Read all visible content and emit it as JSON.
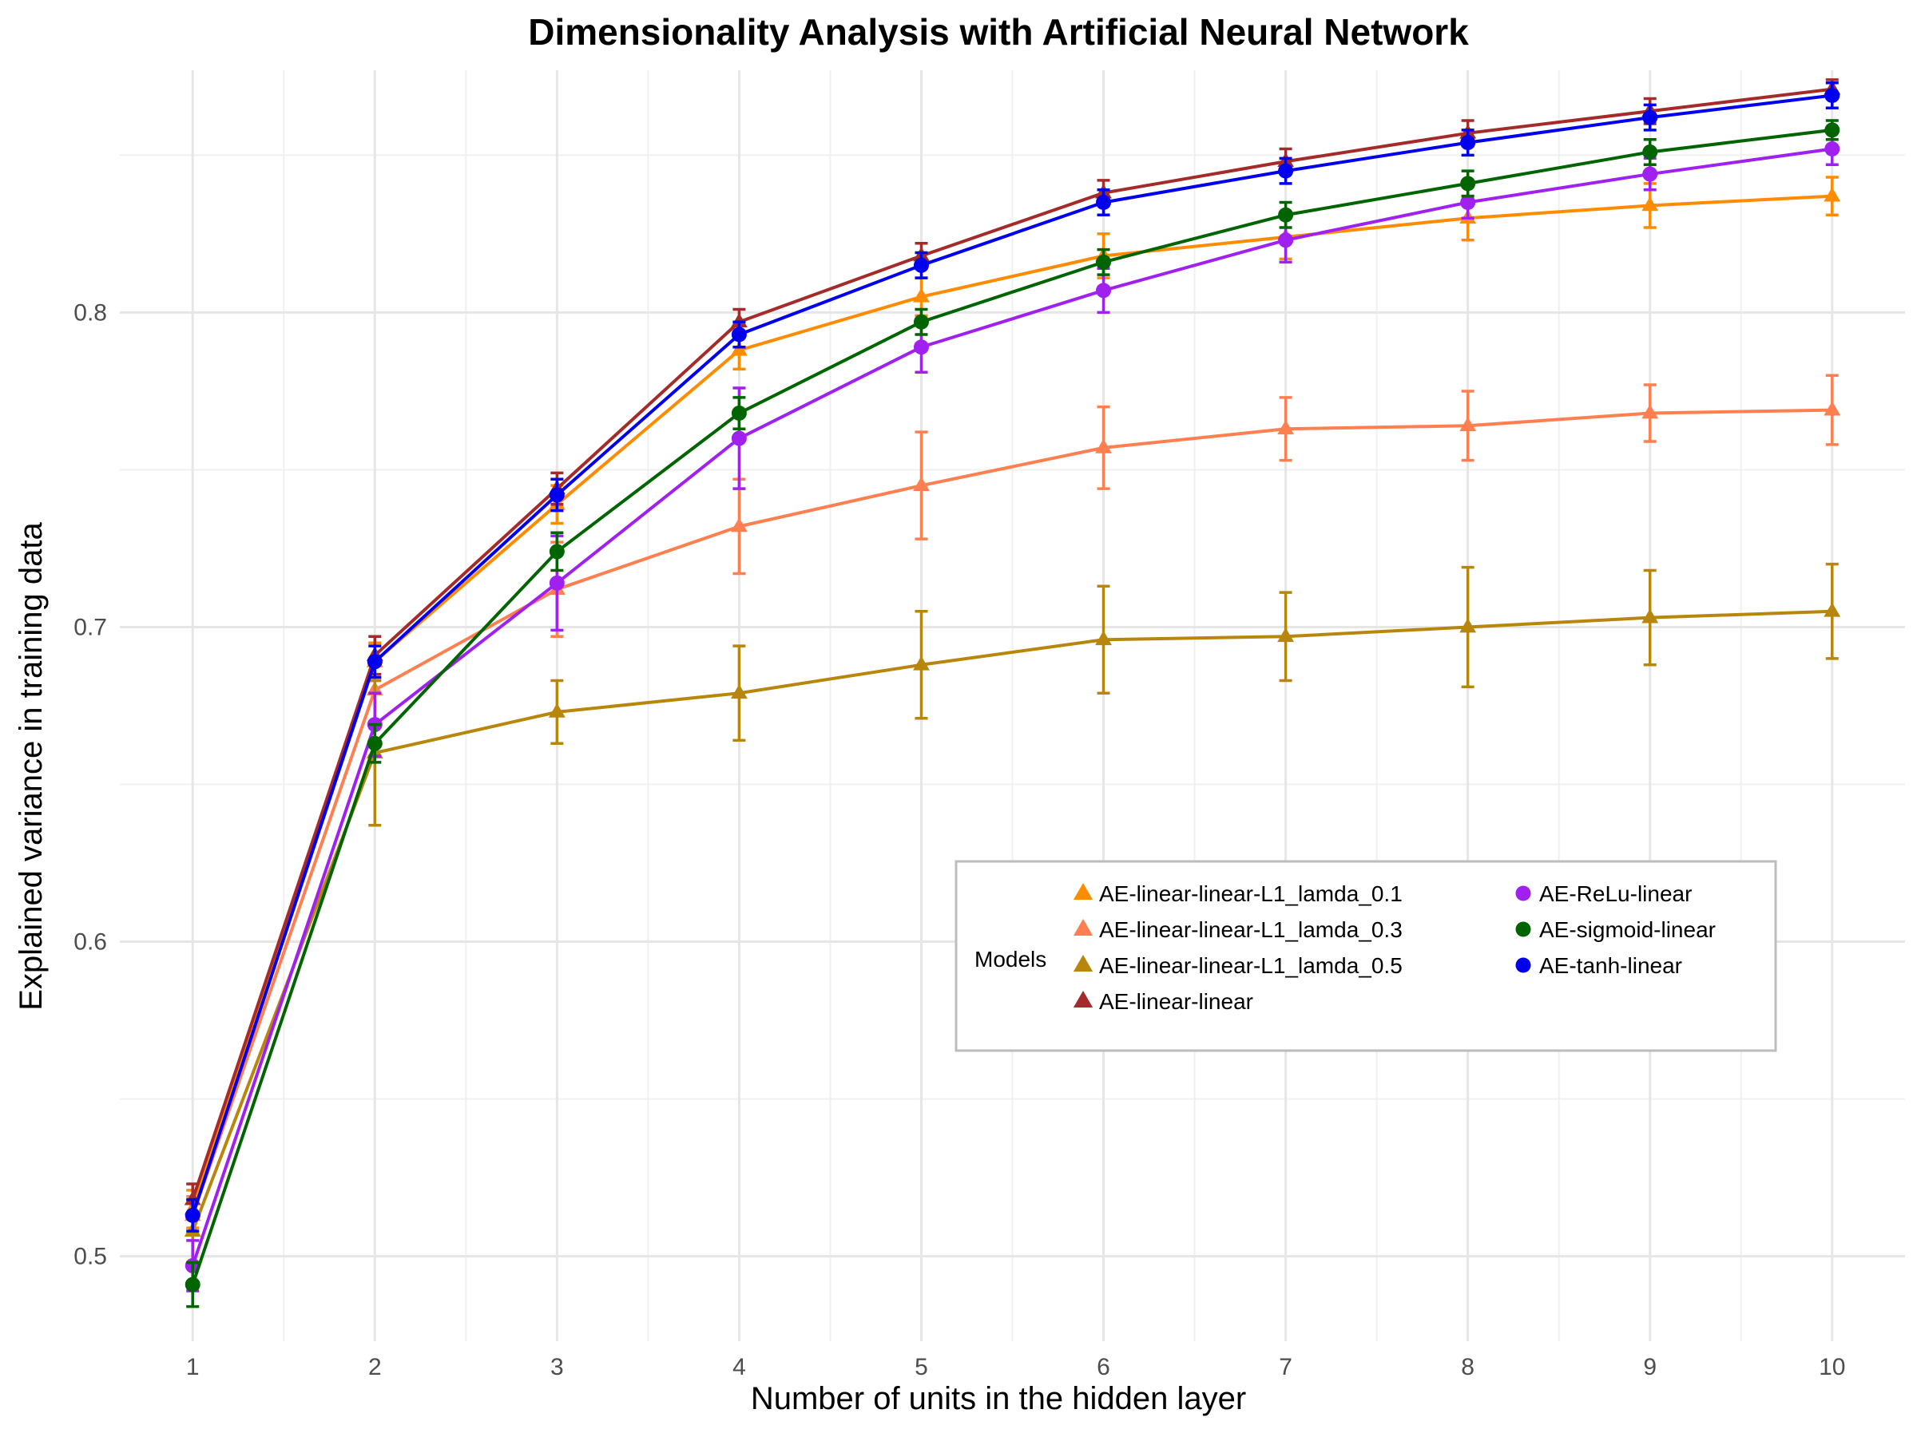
{
  "chart_data": {
    "type": "line",
    "title": "Dimensionality Analysis with Artificial Neural Network",
    "xlabel": "Number of units in the hidden layer",
    "ylabel": "Explained variance in training data",
    "x": [
      1,
      2,
      3,
      4,
      5,
      6,
      7,
      8,
      9,
      10
    ],
    "x_ticks": [
      "1",
      "2",
      "3",
      "4",
      "5",
      "6",
      "7",
      "8",
      "9",
      "10"
    ],
    "y_ticks": [
      "0.5",
      "0.6",
      "0.7",
      "0.8"
    ],
    "y_tick_values": [
      0.5,
      0.6,
      0.7,
      0.8
    ],
    "xlim": [
      0.6,
      10.4
    ],
    "ylim": [
      0.473,
      0.877
    ],
    "grid": true,
    "legend": {
      "title": "Models",
      "placement": "bottom-right"
    },
    "series": [
      {
        "name": "AE-linear-linear-L1_lamda_0.1",
        "color": "#FF8C00",
        "marker": "triangle",
        "values": [
          0.515,
          0.689,
          0.739,
          0.788,
          0.805,
          0.818,
          0.824,
          0.83,
          0.834,
          0.837
        ],
        "errors": [
          0.006,
          0.006,
          0.006,
          0.006,
          0.006,
          0.007,
          0.007,
          0.007,
          0.007,
          0.006
        ]
      },
      {
        "name": "AE-linear-linear-L1_lamda_0.3",
        "color": "#FF7F50",
        "marker": "triangle",
        "values": [
          0.513,
          0.68,
          0.712,
          0.732,
          0.745,
          0.757,
          0.763,
          0.764,
          0.768,
          0.769
        ],
        "errors": [
          0.006,
          0.01,
          0.015,
          0.015,
          0.017,
          0.013,
          0.01,
          0.011,
          0.009,
          0.011
        ]
      },
      {
        "name": "AE-linear-linear-L1_lamda_0.5",
        "color": "#B8860B",
        "marker": "triangle",
        "values": [
          0.508,
          0.66,
          0.673,
          0.679,
          0.688,
          0.696,
          0.697,
          0.7,
          0.703,
          0.705
        ],
        "errors": [
          0.01,
          0.023,
          0.01,
          0.015,
          0.017,
          0.017,
          0.014,
          0.019,
          0.015,
          0.015
        ]
      },
      {
        "name": "AE-linear-linear",
        "color": "#A52A2A",
        "marker": "triangle",
        "values": [
          0.518,
          0.691,
          0.744,
          0.797,
          0.818,
          0.838,
          0.848,
          0.857,
          0.864,
          0.871
        ],
        "errors": [
          0.005,
          0.006,
          0.005,
          0.004,
          0.004,
          0.004,
          0.004,
          0.004,
          0.004,
          0.003
        ]
      },
      {
        "name": "AE-ReLu-linear",
        "color": "#A020F0",
        "marker": "circle",
        "values": [
          0.497,
          0.669,
          0.714,
          0.76,
          0.789,
          0.807,
          0.823,
          0.835,
          0.844,
          0.852
        ],
        "errors": [
          0.008,
          0.01,
          0.015,
          0.016,
          0.008,
          0.007,
          0.007,
          0.005,
          0.005,
          0.005
        ]
      },
      {
        "name": "AE-sigmoid-linear",
        "color": "#006400",
        "marker": "circle",
        "values": [
          0.491,
          0.663,
          0.724,
          0.768,
          0.797,
          0.816,
          0.831,
          0.841,
          0.851,
          0.858
        ],
        "errors": [
          0.007,
          0.006,
          0.006,
          0.005,
          0.004,
          0.004,
          0.004,
          0.004,
          0.004,
          0.003
        ]
      },
      {
        "name": "AE-tanh-linear",
        "color": "#0000EE",
        "marker": "circle",
        "values": [
          0.513,
          0.689,
          0.742,
          0.793,
          0.815,
          0.835,
          0.845,
          0.854,
          0.862,
          0.869
        ],
        "errors": [
          0.005,
          0.005,
          0.005,
          0.004,
          0.004,
          0.004,
          0.004,
          0.004,
          0.004,
          0.004
        ]
      }
    ]
  }
}
